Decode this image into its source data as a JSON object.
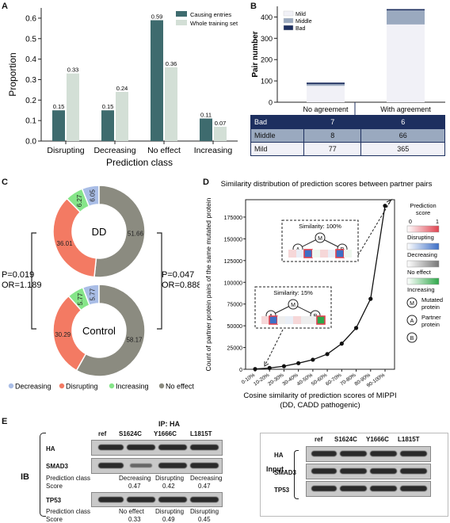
{
  "panels": {
    "a": "A",
    "b": "B",
    "c": "C",
    "d": "D",
    "e": "E"
  },
  "panelA": {
    "chart_data": {
      "type": "bar",
      "categories": [
        "Disrupting",
        "Decreasing",
        "No effect",
        "Increasing"
      ],
      "series": [
        {
          "name": "Causing entries",
          "values": [
            0.15,
            0.15,
            0.59,
            0.11
          ],
          "color": "#3e6b6e"
        },
        {
          "name": "Whole training set",
          "values": [
            0.33,
            0.24,
            0.36,
            0.07
          ],
          "color": "#d3dfd6"
        }
      ],
      "value_labels": [
        [
          "0.15",
          "0.15",
          "0.59",
          "0.11"
        ],
        [
          "0.33",
          "0.24",
          "0.36",
          "0.07"
        ]
      ],
      "xlabel": "Prediction class",
      "ylabel": "Proportion",
      "ylim": [
        0,
        0.65
      ],
      "yticks": [
        "0.0",
        "0.1",
        "0.2",
        "0.3",
        "0.4",
        "0.5",
        "0.6"
      ],
      "legend": "top-right"
    }
  },
  "panelB": {
    "chart_data": {
      "type": "bar",
      "stacked": true,
      "categories": [
        "No agreement",
        "With agreement"
      ],
      "series": [
        {
          "name": "Mild",
          "values": [
            77,
            365
          ],
          "color": "#f1f1f7"
        },
        {
          "name": "Middle",
          "values": [
            8,
            66
          ],
          "color": "#9aa9bf"
        },
        {
          "name": "Bad",
          "values": [
            7,
            6
          ],
          "color": "#1d2f5f"
        }
      ],
      "ylabel": "Pair number",
      "ylim": [
        0,
        450
      ],
      "yticks": [
        "0",
        "100",
        "200",
        "300",
        "400"
      ],
      "legend": "top-left"
    },
    "table": {
      "rows": [
        {
          "label": "Bad",
          "values": [
            "7",
            "6"
          ]
        },
        {
          "label": "Middle",
          "values": [
            "8",
            "66"
          ]
        },
        {
          "label": "Mild",
          "values": [
            "77",
            "365"
          ]
        }
      ]
    }
  },
  "panelC": {
    "dd": {
      "center": "DD",
      "slices": [
        {
          "label": "6.05",
          "value": 6.05,
          "color": "#a9bde6"
        },
        {
          "label": "51.66",
          "value": 51.66,
          "color": "#8b8b80"
        },
        {
          "label": "36.01",
          "value": 36.01,
          "color": "#f37a63"
        },
        {
          "label": "6.27",
          "value": 6.27,
          "color": "#86e589"
        }
      ]
    },
    "control": {
      "center": "Control",
      "slices": [
        {
          "label": "5.77",
          "value": 5.77,
          "color": "#a9bde6"
        },
        {
          "label": "58.17",
          "value": 58.17,
          "color": "#8b8b80"
        },
        {
          "label": "30.29",
          "value": 30.29,
          "color": "#f37a63"
        },
        {
          "label": "5.77",
          "value": 5.77,
          "color": "#86e589"
        }
      ]
    },
    "left_stat": {
      "p": "P=0.019",
      "or": "OR=1.189"
    },
    "right_stat": {
      "p": "P=0.047",
      "or": "OR=0.888"
    },
    "legend": [
      {
        "label": "Decreasing",
        "color": "#a9bde6"
      },
      {
        "label": "Disrupting",
        "color": "#f37a63"
      },
      {
        "label": "Increasing",
        "color": "#86e589"
      },
      {
        "label": "No effect",
        "color": "#8b8b80"
      }
    ]
  },
  "panelD": {
    "chart_data": {
      "type": "line",
      "title": "Similarity distribution of prediction scores between partner pairs",
      "x": [
        "0-10%",
        "10-20%",
        "20-30%",
        "30-40%",
        "40-50%",
        "50-60%",
        "60-70%",
        "70-80%",
        "80-90%",
        "90-100%"
      ],
      "y": [
        300,
        1500,
        3500,
        7000,
        11000,
        17500,
        29500,
        47500,
        81000,
        188000
      ],
      "xlabel": "Cosine similarity of prediction scores of MIPPI (DD, CADD pathogenic)",
      "ylabel": "Count of partner protein pairs of the same mutated protein",
      "ylim": [
        0,
        195000
      ],
      "yticks": [
        "0",
        "25000",
        "50000",
        "75000",
        "100000",
        "125000",
        "150000",
        "175000"
      ]
    },
    "inset1": {
      "title": "Similarity: 100%",
      "m": "M",
      "a": "A",
      "b": "B"
    },
    "inset2": {
      "title": "Similarity: 15%",
      "m": "M",
      "a": "A",
      "b": "B"
    },
    "legend": {
      "title": "Prediction score",
      "scale_min": "0",
      "scale_max": "1",
      "items": [
        {
          "label": "Disrupting",
          "color": "#e0424f"
        },
        {
          "label": "Decreasing",
          "color": "#3d6fc6"
        },
        {
          "label": "No effect",
          "color": "#777777"
        },
        {
          "label": "Increasing",
          "color": "#2fa84a"
        }
      ],
      "nodes": [
        {
          "letter": "M",
          "label": "Mutated protein"
        },
        {
          "letter": "A",
          "label": "Partner protein"
        },
        {
          "letter": "B",
          "label": ""
        }
      ]
    }
  },
  "panelE": {
    "ip_label": "IP: HA",
    "ib_label": "IB",
    "input_label": "Input",
    "lanes": [
      "ref",
      "S1624C",
      "Y1666C",
      "L1815T"
    ],
    "rows_left": [
      "HA",
      "SMAD3",
      "TP53"
    ],
    "rows_right": [
      "HA",
      "SMAD3",
      "TP53"
    ],
    "smad3_row": {
      "label1": "Prediction class",
      "label2": "Score",
      "classes": [
        "Decreasing",
        "Disrupting",
        "Decreasing"
      ],
      "scores": [
        "0.47",
        "0.42",
        "0.47"
      ]
    },
    "tp53_row": {
      "label1": "Prediction class",
      "label2": "Score",
      "classes": [
        "No effect",
        "Disrupting",
        "Disrupting"
      ],
      "scores": [
        "0.33",
        "0.49",
        "0.45"
      ]
    }
  }
}
